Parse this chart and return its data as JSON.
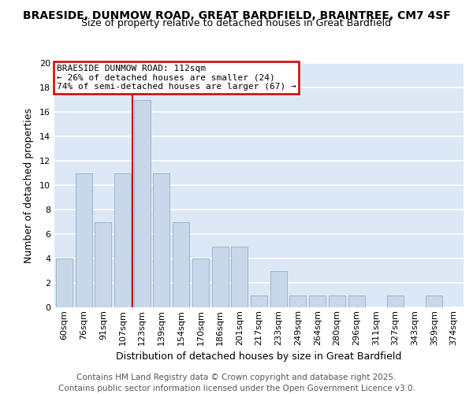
{
  "title_line1": "BRAESIDE, DUNMOW ROAD, GREAT BARDFIELD, BRAINTREE, CM7 4SF",
  "title_line2": "Size of property relative to detached houses in Great Bardfield",
  "xlabel": "Distribution of detached houses by size in Great Bardfield",
  "ylabel": "Number of detached properties",
  "categories": [
    "60sqm",
    "76sqm",
    "91sqm",
    "107sqm",
    "123sqm",
    "139sqm",
    "154sqm",
    "170sqm",
    "186sqm",
    "201sqm",
    "217sqm",
    "233sqm",
    "249sqm",
    "264sqm",
    "280sqm",
    "296sqm",
    "311sqm",
    "327sqm",
    "343sqm",
    "359sqm",
    "374sqm"
  ],
  "values": [
    4,
    11,
    7,
    11,
    17,
    11,
    7,
    4,
    5,
    5,
    1,
    3,
    1,
    1,
    1,
    1,
    0,
    1,
    0,
    1,
    0
  ],
  "bar_color": "#c8d8ea",
  "bar_edge_color": "#9ab4cc",
  "vline_x": 3.5,
  "vline_label": "BRAESIDE DUNMOW ROAD: 112sqm",
  "annotation_line1": "← 26% of detached houses are smaller (24)",
  "annotation_line2": "74% of semi-detached houses are larger (67) →",
  "annotation_box_color": "#ffffff",
  "annotation_box_edge": "#cc0000",
  "vline_color": "#cc0000",
  "ylim": [
    0,
    20
  ],
  "yticks": [
    0,
    2,
    4,
    6,
    8,
    10,
    12,
    14,
    16,
    18,
    20
  ],
  "plot_bg_color": "#dce8f5",
  "fig_bg_color": "#ffffff",
  "grid_color": "#ffffff",
  "footer_line1": "Contains HM Land Registry data © Crown copyright and database right 2025.",
  "footer_line2": "Contains public sector information licensed under the Open Government Licence v3.0.",
  "title_fontsize": 10,
  "subtitle_fontsize": 9,
  "axis_label_fontsize": 9,
  "tick_fontsize": 8,
  "footer_fontsize": 7.5,
  "annotation_fontsize": 8
}
